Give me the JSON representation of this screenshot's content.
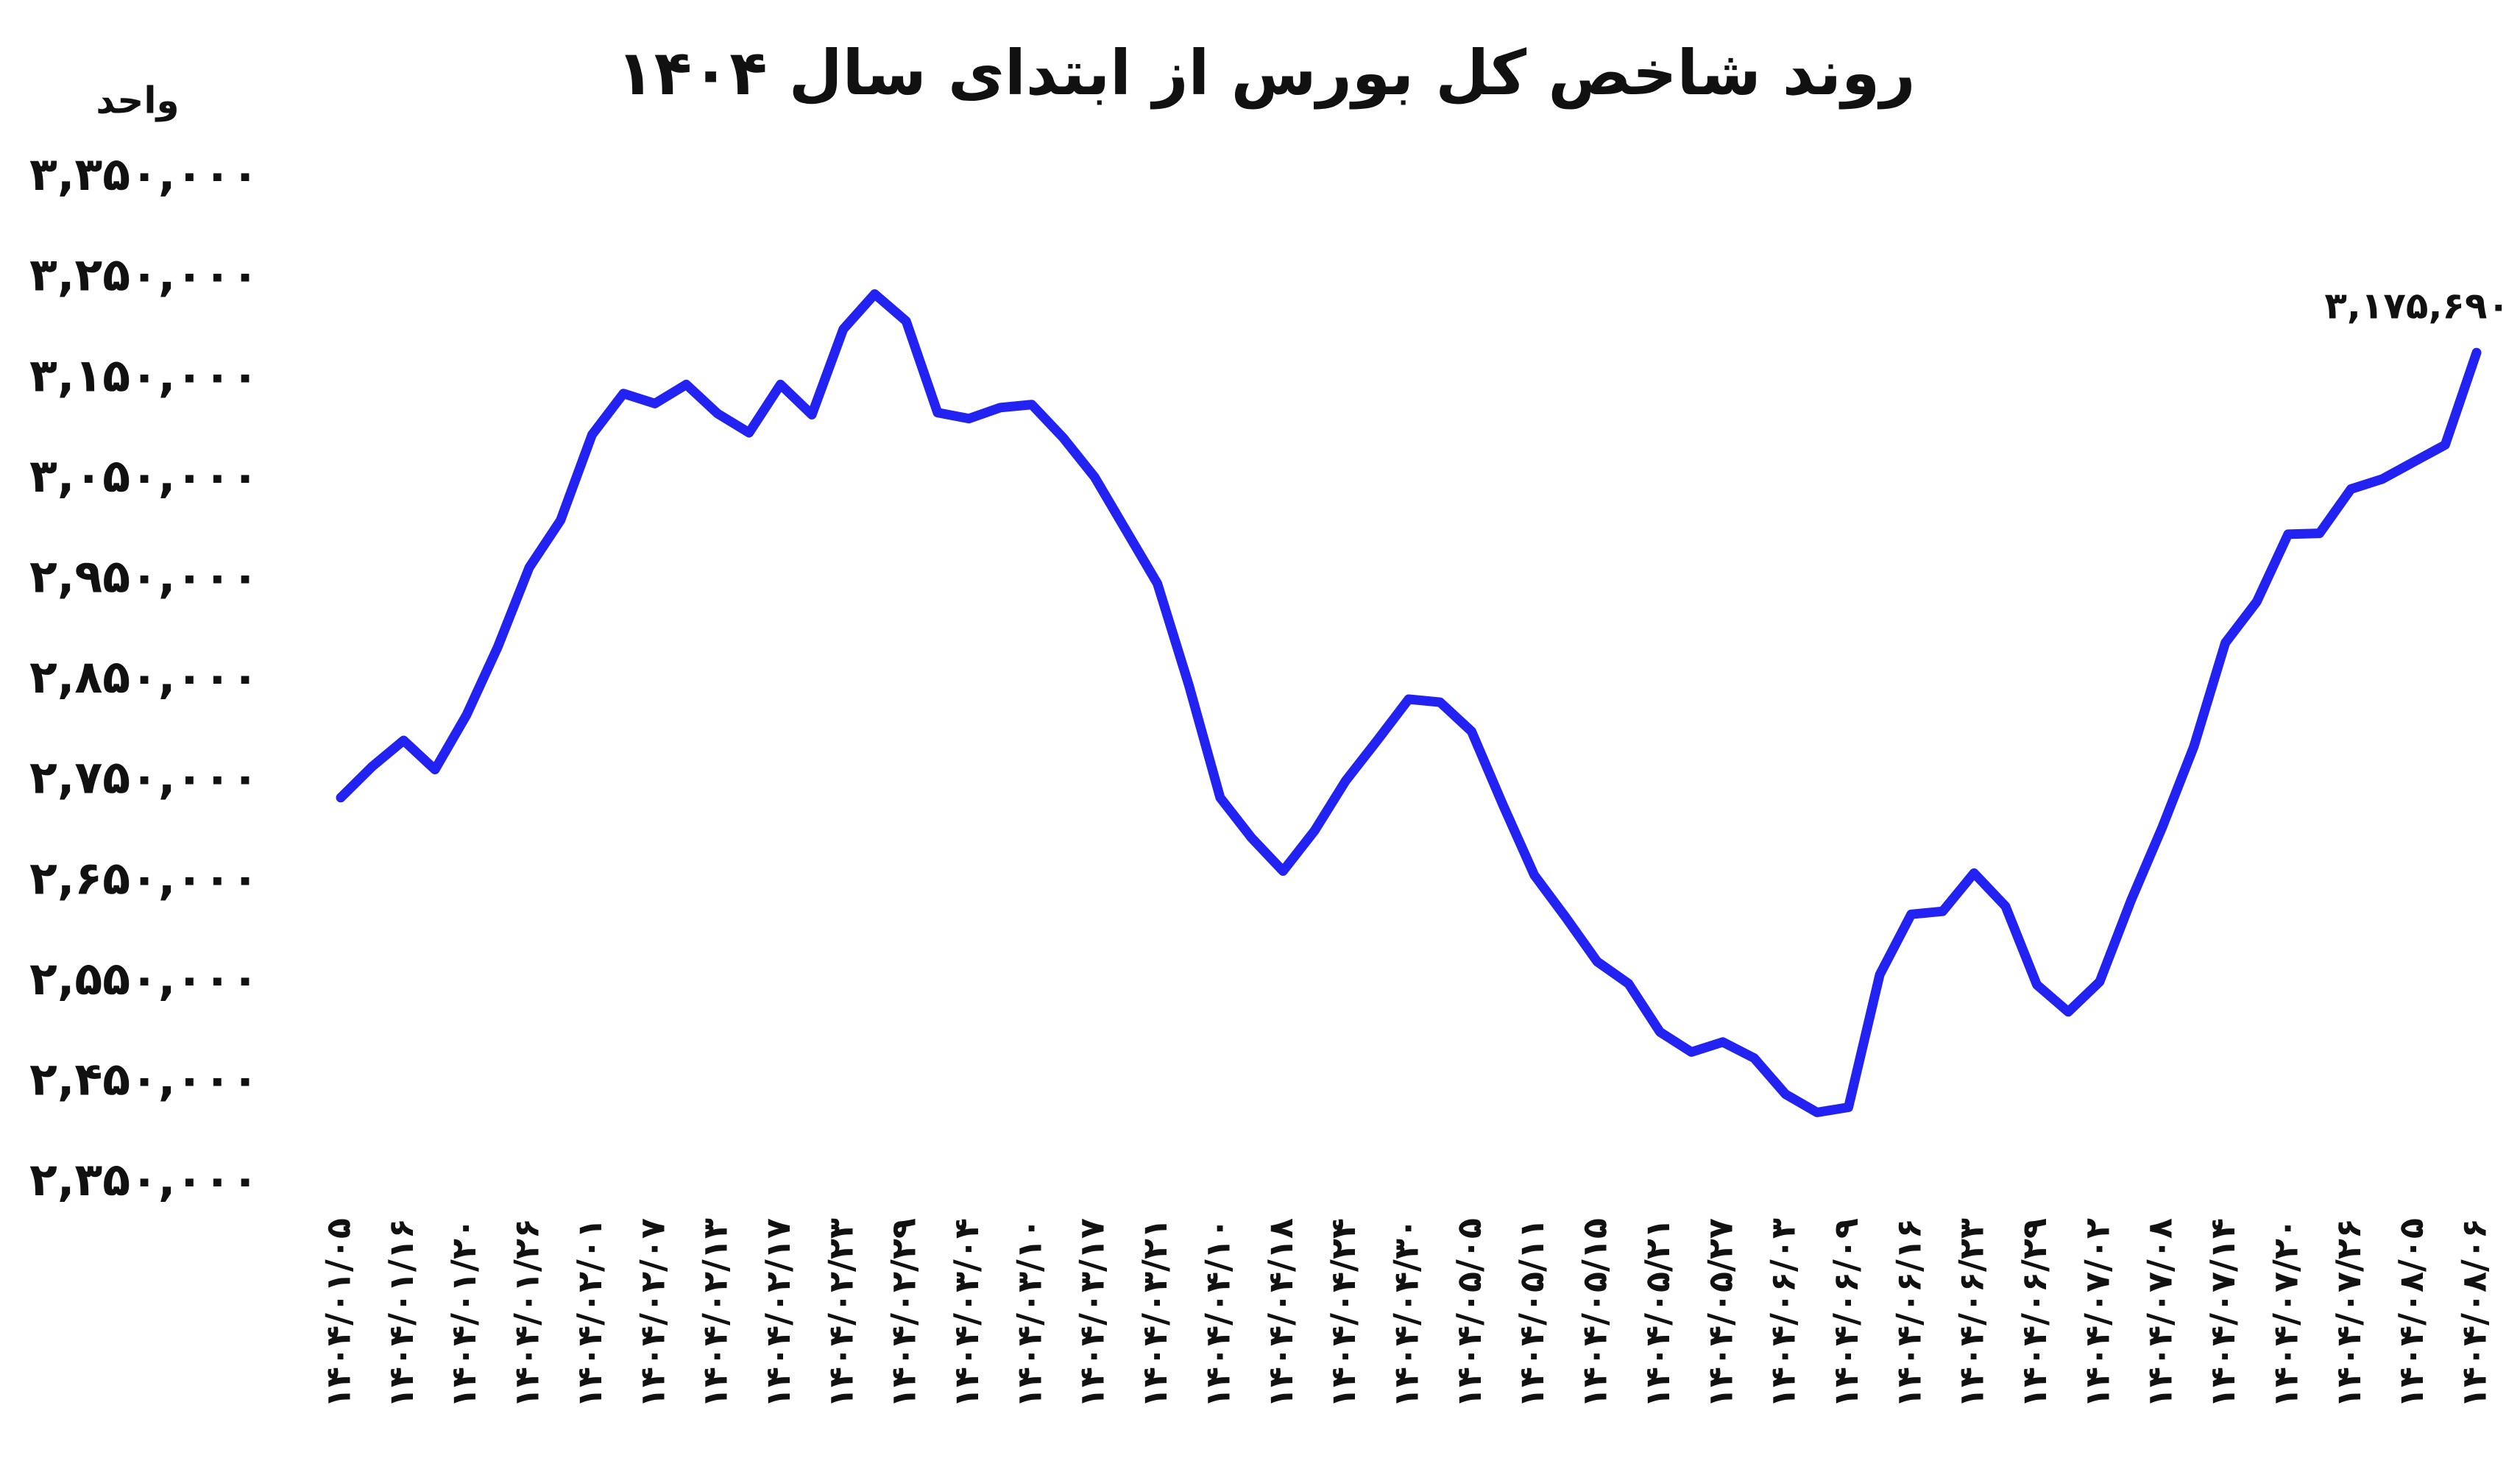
{
  "chart_data": {
    "type": "line",
    "title": "روند شاخص کل بورس از ابتدای سال ۱۴۰۴",
    "ylabel": "واحد",
    "color": "#2222f2",
    "grid": false,
    "categories": [
      "۱۴۰۴/۰۱/۰۵",
      null,
      "۱۴۰۴/۰۱/۱۶",
      null,
      "۱۴۰۴/۰۱/۲۰",
      null,
      "۱۴۰۴/۰۱/۲۶",
      null,
      "۱۴۰۴/۰۲/۰۱",
      null,
      "۱۴۰۴/۰۲/۰۷",
      null,
      "۱۴۰۴/۰۲/۱۳",
      null,
      "۱۴۰۴/۰۲/۱۷",
      null,
      "۱۴۰۴/۰۲/۲۳",
      null,
      "۱۴۰۴/۰۲/۲۹",
      null,
      "۱۴۰۴/۰۳/۰۴",
      null,
      "۱۴۰۴/۰۳/۱۰",
      null,
      "۱۴۰۴/۰۳/۱۷",
      null,
      "۱۴۰۴/۰۳/۲۱",
      null,
      "۱۴۰۴/۰۴/۱۰",
      null,
      "۱۴۰۴/۰۴/۱۸",
      null,
      "۱۴۰۴/۰۴/۲۴",
      null,
      "۱۴۰۴/۰۴/۳۰",
      null,
      "۱۴۰۴/۰۵/۰۵",
      null,
      "۱۴۰۴/۰۵/۱۱",
      null,
      "۱۴۰۴/۰۵/۱۵",
      null,
      "۱۴۰۴/۰۵/۲۱",
      null,
      "۱۴۰۴/۰۵/۲۷",
      null,
      "۱۴۰۴/۰۶/۰۳",
      null,
      "۱۴۰۴/۰۶/۰۹",
      null,
      "۱۴۰۴/۰۶/۱۶",
      null,
      "۱۴۰۴/۰۶/۲۳",
      null,
      "۱۴۰۴/۰۶/۲۹",
      null,
      "۱۴۰۴/۰۷/۰۲",
      null,
      "۱۴۰۴/۰۷/۰۸",
      null,
      "۱۴۰۴/۰۷/۱۴",
      null,
      "۱۴۰۴/۰۷/۲۰",
      null,
      "۱۴۰۴/۰۷/۲۶",
      null,
      "۱۴۰۴/۰۸/۰۵",
      null,
      "۱۴۰۴/۰۸/۰۶"
    ],
    "values": [
      2733000,
      2764000,
      2790000,
      2761000,
      2815000,
      2883000,
      2962000,
      3009000,
      3094000,
      3135000,
      3125000,
      3144000,
      3115000,
      3096000,
      3144000,
      3114000,
      3199000,
      3234000,
      3207000,
      3116000,
      3110000,
      3121000,
      3124000,
      3091000,
      3052000,
      2999000,
      2946000,
      2845000,
      2733000,
      2693000,
      2660000,
      2700000,
      2750000,
      2790000,
      2831000,
      2828000,
      2799000,
      2726000,
      2656000,
      2614000,
      2570000,
      2548000,
      2500000,
      2480000,
      2490000,
      2474000,
      2438000,
      2420000,
      2425000,
      2557000,
      2617000,
      2620000,
      2658000,
      2625000,
      2547000,
      2520000,
      2550000,
      2631000,
      2704000,
      2784000,
      2887000,
      2928000,
      2995000,
      2996000,
      3040000,
      3050000,
      3067000,
      3084000,
      3175690
    ],
    "value_labels": [
      null,
      null,
      null,
      null,
      null,
      null,
      null,
      null,
      null,
      null,
      null,
      null,
      null,
      null,
      null,
      null,
      null,
      null,
      null,
      null,
      null,
      null,
      null,
      null,
      null,
      null,
      null,
      null,
      null,
      null,
      null,
      null,
      null,
      null,
      null,
      null,
      null,
      null,
      null,
      null,
      null,
      null,
      null,
      null,
      null,
      null,
      null,
      null,
      null,
      null,
      null,
      null,
      null,
      null,
      null,
      null,
      null,
      null,
      null,
      null,
      null,
      null,
      null,
      null,
      null,
      null,
      null,
      null,
      "۳,۱۷۵,۶۹۰"
    ],
    "ylim": [
      2350000,
      3350000
    ],
    "yticks": [
      {
        "value": 2350000,
        "label": "۲,۳۵۰,۰۰۰"
      },
      {
        "value": 2450000,
        "label": "۲,۴۵۰,۰۰۰"
      },
      {
        "value": 2550000,
        "label": "۲,۵۵۰,۰۰۰"
      },
      {
        "value": 2650000,
        "label": "۲,۶۵۰,۰۰۰"
      },
      {
        "value": 2750000,
        "label": "۲,۷۵۰,۰۰۰"
      },
      {
        "value": 2850000,
        "label": "۲,۸۵۰,۰۰۰"
      },
      {
        "value": 2950000,
        "label": "۲,۹۵۰,۰۰۰"
      },
      {
        "value": 3050000,
        "label": "۳,۰۵۰,۰۰۰"
      },
      {
        "value": 3150000,
        "label": "۳,۱۵۰,۰۰۰"
      },
      {
        "value": 3250000,
        "label": "۳,۲۵۰,۰۰۰"
      },
      {
        "value": 3350000,
        "label": "۳,۳۵۰,۰۰۰"
      }
    ]
  }
}
